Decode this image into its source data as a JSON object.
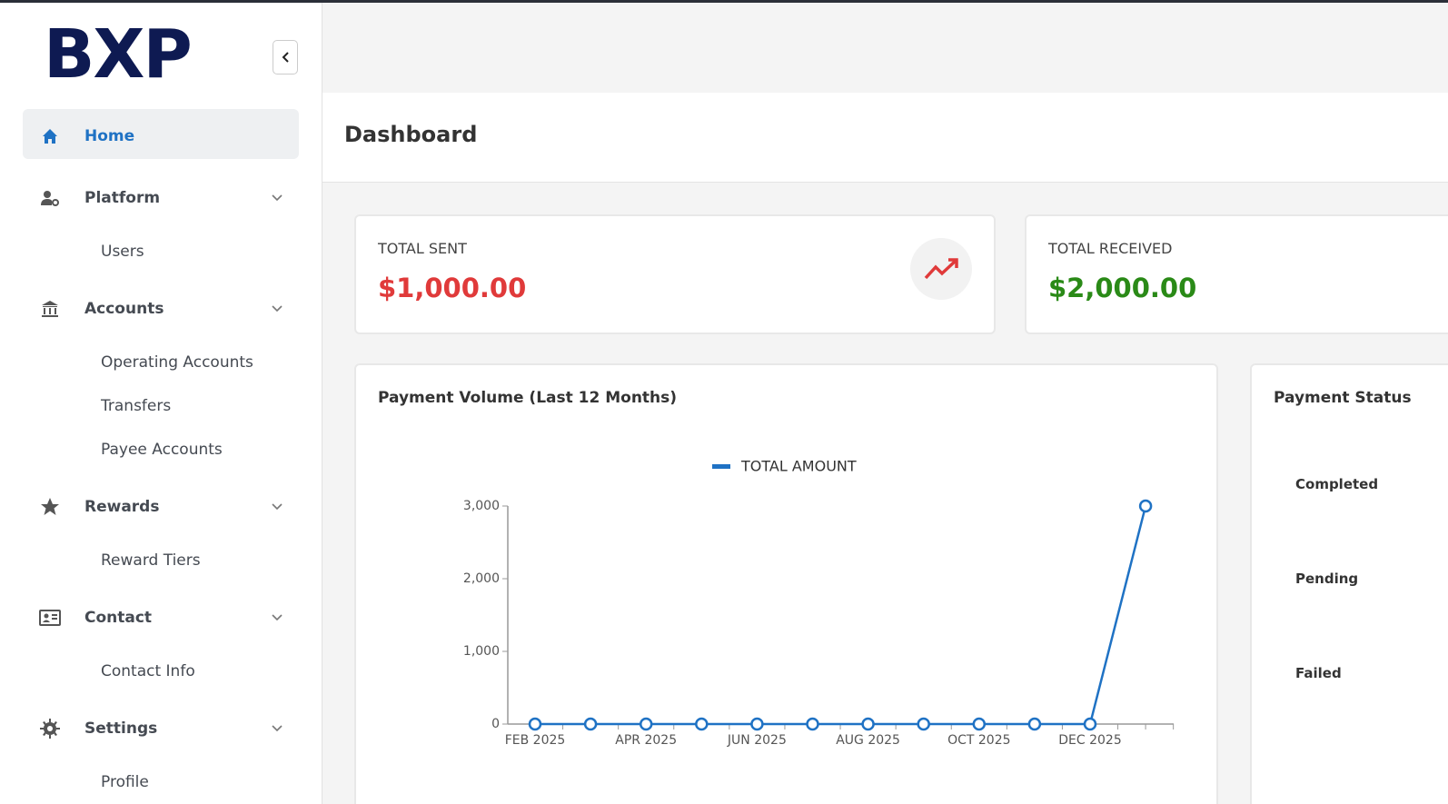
{
  "sidebar": {
    "logo": "BXP",
    "nav": [
      {
        "label": "Home"
      },
      {
        "label": "Platform",
        "children": [
          "Users"
        ]
      },
      {
        "label": "Accounts",
        "children": [
          "Operating Accounts",
          "Transfers",
          "Payee Accounts"
        ]
      },
      {
        "label": "Rewards",
        "children": [
          "Reward Tiers"
        ]
      },
      {
        "label": "Contact",
        "children": [
          "Contact Info"
        ]
      },
      {
        "label": "Settings",
        "children": [
          "Profile"
        ]
      }
    ]
  },
  "header": {
    "title": "Dashboard"
  },
  "cards": [
    {
      "label": "TOTAL SENT",
      "value": "$1,000.00"
    },
    {
      "label": "TOTAL RECEIVED",
      "value": "$2,000.00"
    }
  ],
  "chart_data": {
    "type": "line",
    "title": "Payment Volume (Last 12 Months)",
    "categories": [
      "FEB 2025",
      null,
      "APR 2025",
      null,
      "JUN 2025",
      null,
      "AUG 2025",
      null,
      "OCT 2025",
      null,
      "DEC 2025",
      null
    ],
    "series": [
      {
        "name": "TOTAL AMOUNT",
        "color": "#1f72c4",
        "values": [
          0,
          0,
          0,
          0,
          0,
          0,
          0,
          0,
          0,
          0,
          0,
          3000
        ]
      }
    ],
    "ylim": [
      0,
      3000
    ],
    "yticks": [
      0,
      {
        "value": 1000,
        "label": "1,000"
      },
      {
        "value": 2000,
        "label": "2,000"
      },
      {
        "value": 3000,
        "label": "3,000"
      }
    ],
    "legend": "top",
    "grid": false
  },
  "payment_status": {
    "title": "Payment Status",
    "items": [
      "Completed",
      "Pending",
      "Failed"
    ]
  }
}
